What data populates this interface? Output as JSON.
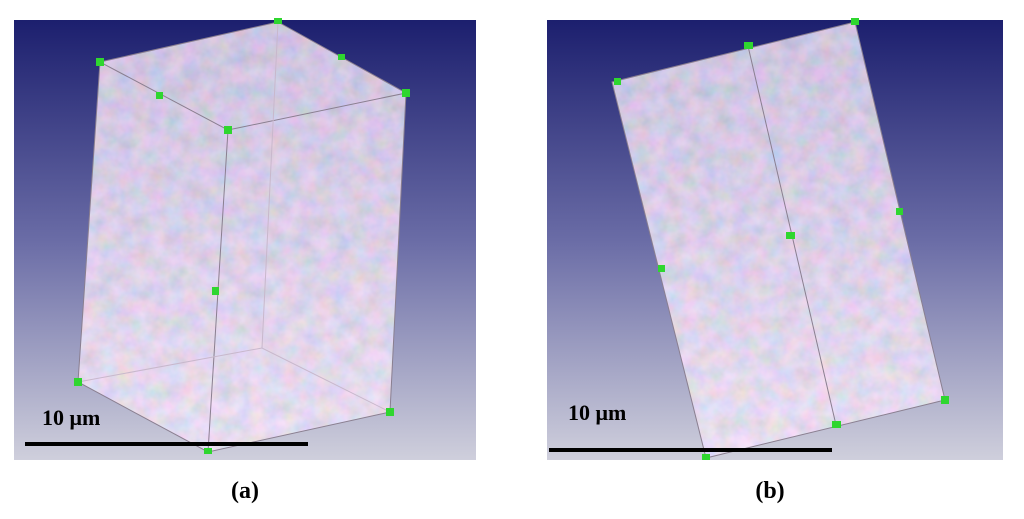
{
  "panels": [
    {
      "label": "(a)",
      "scale_bar": "10 μm"
    },
    {
      "label": "(b)",
      "scale_bar": "10 μm"
    }
  ]
}
